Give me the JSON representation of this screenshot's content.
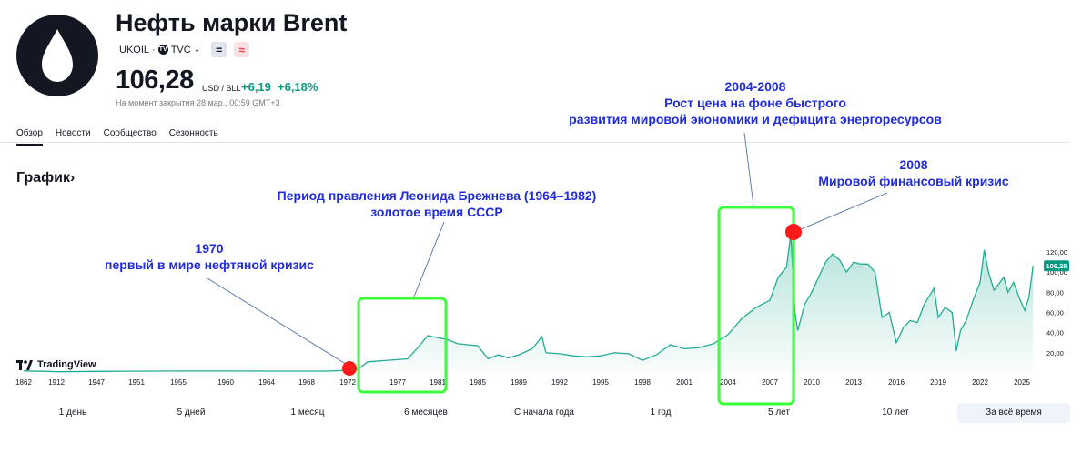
{
  "header": {
    "title": "Нефть марки Brent",
    "ticker": "UKOIL",
    "dot": "·",
    "source": "TVC",
    "tv_badge": "TV",
    "btn_minus": "=",
    "btn_approx": "≈",
    "price": "106,28",
    "currency": "USD / BLL",
    "change": "+6,19",
    "change_percent": "+6,18%",
    "closed_note": "На момент закрытия 28 мар., 00:59 GMT+3",
    "logo_icon": "oil-drop-icon"
  },
  "tabs": [
    "Обзор",
    "Новости",
    "Сообщество",
    "Сезонность"
  ],
  "graph_title": "График›",
  "tradingview_label": "TradingView",
  "annotations": {
    "a1970_year": "1970",
    "a1970_text": "первый в мире нефтяной кризис",
    "brezhnev_line1": "Период правления Леонида Брежнева (1964–1982)",
    "brezhnev_line2": "золотое время СССР",
    "a2004_line1": "2004-2008",
    "a2004_line2": "Рост цена на фоне быстрого",
    "a2004_line3": "развития мировой экономики и дефицита энергоресурсов",
    "a2008_year": "2008",
    "a2008_text": "Мировой финансовый кризис"
  },
  "ranges": [
    "1 день",
    "5 дней",
    "1 месяц",
    "6 месяцев",
    "С начала года",
    "1 год",
    "5 лет",
    "10 лет",
    "За всё время"
  ],
  "colors": {
    "line": "#22ab94",
    "annotation": "#1f2bdc",
    "highlight_box": "#3cff3c",
    "marker": "#ff1a1a",
    "positive": "#089981"
  },
  "chart_data": {
    "type": "area",
    "x_ticks": [
      "1862",
      "1912",
      "1947",
      "1951",
      "1955",
      "1960",
      "1964",
      "1968",
      "1972",
      "1977",
      "1981",
      "1985",
      "1989",
      "1992",
      "1995",
      "1998",
      "2001",
      "2004",
      "2007",
      "2010",
      "2013",
      "2016",
      "2019",
      "2022",
      "2025"
    ],
    "y_ticks": [
      "120,00",
      "100,00",
      "80,00",
      "60,00",
      "40,00",
      "20,00"
    ],
    "ylim": [
      0,
      135
    ],
    "last_value_label": "106,28",
    "series": [
      {
        "values_by_year": [
          [
            1862,
            2.0
          ],
          [
            1900,
            1.5
          ],
          [
            1912,
            1.2
          ],
          [
            1947,
            1.5
          ],
          [
            1950,
            1.7
          ],
          [
            1955,
            1.9
          ],
          [
            1960,
            1.9
          ],
          [
            1965,
            1.8
          ],
          [
            1970,
            1.8
          ],
          [
            1972,
            2.5
          ],
          [
            1973,
            3.5
          ],
          [
            1974,
            11
          ],
          [
            1976,
            12.5
          ],
          [
            1978,
            14
          ],
          [
            1979,
            25
          ],
          [
            1980,
            37
          ],
          [
            1981,
            35
          ],
          [
            1982,
            33
          ],
          [
            1983,
            29
          ],
          [
            1984,
            28
          ],
          [
            1985,
            27
          ],
          [
            1986,
            14
          ],
          [
            1987,
            18
          ],
          [
            1988,
            15
          ],
          [
            1989,
            18
          ],
          [
            1990,
            24
          ],
          [
            1990.7,
            36
          ],
          [
            1991,
            20
          ],
          [
            1992,
            19
          ],
          [
            1993,
            17
          ],
          [
            1994,
            16
          ],
          [
            1995,
            17
          ],
          [
            1996,
            20
          ],
          [
            1997,
            19
          ],
          [
            1998,
            12.5
          ],
          [
            1999,
            18
          ],
          [
            2000,
            28
          ],
          [
            2001,
            24
          ],
          [
            2002,
            25
          ],
          [
            2003,
            29
          ],
          [
            2004,
            38
          ],
          [
            2005,
            54
          ],
          [
            2006,
            65
          ],
          [
            2007,
            72
          ],
          [
            2007.6,
            95
          ],
          [
            2008.2,
            105
          ],
          [
            2008.5,
            138
          ],
          [
            2008.8,
            60
          ],
          [
            2009,
            42
          ],
          [
            2009.5,
            68
          ],
          [
            2010,
            80
          ],
          [
            2011,
            110
          ],
          [
            2011.5,
            118
          ],
          [
            2012,
            112
          ],
          [
            2012.5,
            100
          ],
          [
            2013,
            110
          ],
          [
            2013.5,
            108
          ],
          [
            2014,
            108
          ],
          [
            2014.5,
            100
          ],
          [
            2015,
            55
          ],
          [
            2015.5,
            60
          ],
          [
            2016,
            30
          ],
          [
            2016.5,
            45
          ],
          [
            2017,
            52
          ],
          [
            2017.5,
            50
          ],
          [
            2018,
            68
          ],
          [
            2018.7,
            84
          ],
          [
            2019,
            55
          ],
          [
            2019.5,
            65
          ],
          [
            2020,
            60
          ],
          [
            2020.3,
            22
          ],
          [
            2020.6,
            42
          ],
          [
            2021,
            52
          ],
          [
            2021.5,
            72
          ],
          [
            2022,
            90
          ],
          [
            2022.3,
            122
          ],
          [
            2022.6,
            100
          ],
          [
            2023,
            82
          ],
          [
            2023.7,
            95
          ],
          [
            2024,
            80
          ],
          [
            2024.4,
            90
          ],
          [
            2024.8,
            75
          ],
          [
            2025.2,
            62
          ],
          [
            2025.5,
            75
          ],
          [
            2025.8,
            106.28
          ]
        ]
      }
    ]
  }
}
